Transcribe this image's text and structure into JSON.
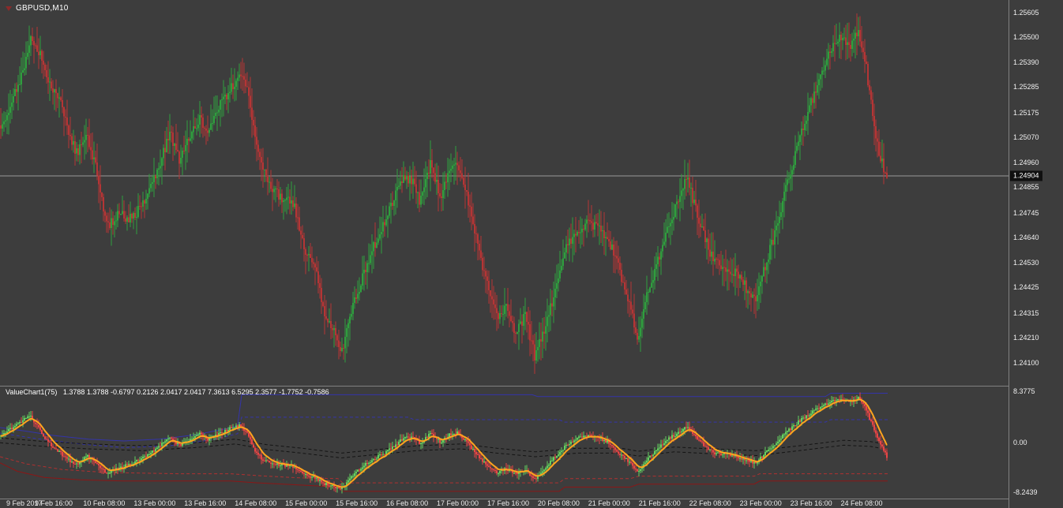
{
  "window": {
    "symbol_label": "GBPUSD,M10"
  },
  "colors": {
    "background": "#3d3d3d",
    "axis_text": "#f0f0f0",
    "separator": "#808080",
    "bull": "#2f9e3e",
    "bear": "#b53535",
    "osc_bull": "#63d05e",
    "osc_bear": "#e84545",
    "osc_ma": "#ffa41e",
    "osc_blue": "#3434aa",
    "osc_black": "#141414",
    "osc_dark_red": "#8c1616",
    "osc_red": "#b03030",
    "price_line": "#999999",
    "price_badge_bg": "#101010",
    "price_badge_text": "#ffffff",
    "symbol_triangle": "#8c2a2a"
  },
  "chart_data": [
    {
      "type": "candlestick",
      "symbol": "GBPUSD",
      "timeframe": "M10",
      "price_axis": {
        "max": 1.25605,
        "min": 1.241,
        "current_price": "1.24904",
        "labels": [
          "1.25605",
          "1.25500",
          "1.25390",
          "1.25285",
          "1.25175",
          "1.25070",
          "1.24960",
          "1.24855",
          "1.24745",
          "1.24640",
          "1.24530",
          "1.24425",
          "1.24315",
          "1.24210",
          "1.24100"
        ]
      },
      "time_axis": {
        "labels": [
          "9 Feb 2017",
          "9 Feb 16:00",
          "10 Feb 08:00",
          "13 Feb 00:00",
          "13 Feb 16:00",
          "14 Feb 08:00",
          "15 Feb 00:00",
          "15 Feb 16:00",
          "16 Feb 08:00",
          "17 Feb 00:00",
          "17 Feb 16:00",
          "20 Feb 08:00",
          "21 Feb 00:00",
          "21 Feb 16:00",
          "22 Feb 08:00",
          "23 Feb 00:00",
          "23 Feb 16:00",
          "24 Feb 08:00"
        ]
      },
      "price_path": [
        [
          0,
          1.2512
        ],
        [
          0.011,
          1.252
        ],
        [
          0.027,
          1.2538
        ],
        [
          0.034,
          1.255
        ],
        [
          0.043,
          1.2544
        ],
        [
          0.053,
          1.2532
        ],
        [
          0.067,
          1.2522
        ],
        [
          0.085,
          1.25
        ],
        [
          0.098,
          1.2507
        ],
        [
          0.109,
          1.2492
        ],
        [
          0.12,
          1.2468
        ],
        [
          0.133,
          1.2474
        ],
        [
          0.147,
          1.2472
        ],
        [
          0.16,
          1.2478
        ],
        [
          0.178,
          1.2494
        ],
        [
          0.191,
          1.2509
        ],
        [
          0.202,
          1.2497
        ],
        [
          0.214,
          1.2508
        ],
        [
          0.224,
          1.2515
        ],
        [
          0.233,
          1.251
        ],
        [
          0.245,
          1.2519
        ],
        [
          0.258,
          1.2527
        ],
        [
          0.27,
          1.2533
        ],
        [
          0.278,
          1.2528
        ],
        [
          0.286,
          1.2508
        ],
        [
          0.295,
          1.2494
        ],
        [
          0.307,
          1.2484
        ],
        [
          0.32,
          1.248
        ],
        [
          0.331,
          1.2478
        ],
        [
          0.343,
          1.2458
        ],
        [
          0.354,
          1.2452
        ],
        [
          0.365,
          1.2432
        ],
        [
          0.375,
          1.2425
        ],
        [
          0.384,
          1.2414
        ],
        [
          0.396,
          1.2432
        ],
        [
          0.407,
          1.2445
        ],
        [
          0.418,
          1.2458
        ],
        [
          0.431,
          1.2468
        ],
        [
          0.445,
          1.2482
        ],
        [
          0.455,
          1.249
        ],
        [
          0.467,
          1.2488
        ],
        [
          0.473,
          1.2479
        ],
        [
          0.485,
          1.2496
        ],
        [
          0.496,
          1.2481
        ],
        [
          0.507,
          1.2493
        ],
        [
          0.516,
          1.2494
        ],
        [
          0.527,
          1.248
        ],
        [
          0.538,
          1.2461
        ],
        [
          0.55,
          1.2442
        ],
        [
          0.56,
          1.243
        ],
        [
          0.571,
          1.2434
        ],
        [
          0.58,
          1.2424
        ],
        [
          0.592,
          1.243
        ],
        [
          0.603,
          1.2412
        ],
        [
          0.616,
          1.2428
        ],
        [
          0.627,
          1.2443
        ],
        [
          0.639,
          1.246
        ],
        [
          0.649,
          1.2466
        ],
        [
          0.663,
          1.247
        ],
        [
          0.674,
          1.2468
        ],
        [
          0.685,
          1.2464
        ],
        [
          0.698,
          1.245
        ],
        [
          0.709,
          1.2436
        ],
        [
          0.719,
          1.242
        ],
        [
          0.73,
          1.244
        ],
        [
          0.74,
          1.2452
        ],
        [
          0.752,
          1.2468
        ],
        [
          0.763,
          1.2478
        ],
        [
          0.774,
          1.249
        ],
        [
          0.785,
          1.2475
        ],
        [
          0.794,
          1.2464
        ],
        [
          0.805,
          1.2453
        ],
        [
          0.818,
          1.2451
        ],
        [
          0.832,
          1.2448
        ],
        [
          0.843,
          1.2441
        ],
        [
          0.852,
          1.2436
        ],
        [
          0.863,
          1.2452
        ],
        [
          0.874,
          1.2466
        ],
        [
          0.885,
          1.2484
        ],
        [
          0.899,
          1.2503
        ],
        [
          0.912,
          1.2519
        ],
        [
          0.925,
          1.2534
        ],
        [
          0.937,
          1.2544
        ],
        [
          0.948,
          1.2551
        ],
        [
          0.958,
          1.2545
        ],
        [
          0.968,
          1.2553
        ],
        [
          0.977,
          1.2536
        ],
        [
          0.984,
          1.2517
        ],
        [
          0.991,
          1.25
        ],
        [
          1,
          1.249
        ]
      ]
    },
    {
      "type": "oscillator-candles",
      "title": "ValueChart1(75)",
      "values_line": "1.3788 1.3788 -0.6797 0.2126 2.0417 2.0417 7.3613 6.5295 2.3577 -1.7752 -0.7586",
      "y_axis": {
        "max": 8.3775,
        "min": -8.2439,
        "labels": [
          "8.3775",
          "0.00",
          "-8.2439"
        ]
      },
      "value_path": [
        [
          0,
          1.0
        ],
        [
          0.011,
          2.2
        ],
        [
          0.027,
          3.8
        ],
        [
          0.034,
          4.2
        ],
        [
          0.043,
          2.2
        ],
        [
          0.053,
          0.0
        ],
        [
          0.067,
          -1.8
        ],
        [
          0.085,
          -3.8
        ],
        [
          0.098,
          -2.2
        ],
        [
          0.109,
          -3.6
        ],
        [
          0.12,
          -5.2
        ],
        [
          0.133,
          -4.2
        ],
        [
          0.147,
          -3.6
        ],
        [
          0.16,
          -2.6
        ],
        [
          0.178,
          -0.8
        ],
        [
          0.191,
          0.8
        ],
        [
          0.202,
          -0.6
        ],
        [
          0.214,
          0.6
        ],
        [
          0.224,
          1.4
        ],
        [
          0.233,
          0.4
        ],
        [
          0.245,
          1.2
        ],
        [
          0.258,
          2.2
        ],
        [
          0.27,
          2.8
        ],
        [
          0.278,
          1.6
        ],
        [
          0.286,
          -1.2
        ],
        [
          0.295,
          -2.8
        ],
        [
          0.307,
          -3.6
        ],
        [
          0.32,
          -3.8
        ],
        [
          0.331,
          -4.0
        ],
        [
          0.343,
          -5.4
        ],
        [
          0.354,
          -5.8
        ],
        [
          0.365,
          -6.8
        ],
        [
          0.375,
          -7.2
        ],
        [
          0.384,
          -7.8
        ],
        [
          0.396,
          -5.6
        ],
        [
          0.407,
          -4.2
        ],
        [
          0.418,
          -3.0
        ],
        [
          0.431,
          -2.0
        ],
        [
          0.445,
          -0.6
        ],
        [
          0.455,
          0.8
        ],
        [
          0.467,
          0.6
        ],
        [
          0.473,
          -0.4
        ],
        [
          0.485,
          1.6
        ],
        [
          0.496,
          0.0
        ],
        [
          0.507,
          1.4
        ],
        [
          0.516,
          1.6
        ],
        [
          0.527,
          -0.2
        ],
        [
          0.538,
          -2.2
        ],
        [
          0.55,
          -4.0
        ],
        [
          0.56,
          -5.0
        ],
        [
          0.571,
          -4.4
        ],
        [
          0.58,
          -5.2
        ],
        [
          0.592,
          -4.6
        ],
        [
          0.603,
          -6.2
        ],
        [
          0.616,
          -4.0
        ],
        [
          0.627,
          -2.2
        ],
        [
          0.639,
          -0.4
        ],
        [
          0.649,
          0.6
        ],
        [
          0.663,
          1.2
        ],
        [
          0.674,
          0.8
        ],
        [
          0.685,
          0.0
        ],
        [
          0.698,
          -1.8
        ],
        [
          0.709,
          -3.2
        ],
        [
          0.719,
          -5.0
        ],
        [
          0.73,
          -2.8
        ],
        [
          0.74,
          -1.4
        ],
        [
          0.752,
          0.4
        ],
        [
          0.763,
          1.4
        ],
        [
          0.774,
          2.6
        ],
        [
          0.785,
          0.8
        ],
        [
          0.794,
          -0.6
        ],
        [
          0.805,
          -1.8
        ],
        [
          0.818,
          -2.0
        ],
        [
          0.832,
          -2.4
        ],
        [
          0.843,
          -3.0
        ],
        [
          0.852,
          -3.4
        ],
        [
          0.863,
          -1.8
        ],
        [
          0.874,
          -0.4
        ],
        [
          0.885,
          1.4
        ],
        [
          0.899,
          3.2
        ],
        [
          0.912,
          4.6
        ],
        [
          0.925,
          5.8
        ],
        [
          0.937,
          6.6
        ],
        [
          0.948,
          7.2
        ],
        [
          0.958,
          6.6
        ],
        [
          0.968,
          7.3
        ],
        [
          0.977,
          5.2
        ],
        [
          0.984,
          2.6
        ],
        [
          0.991,
          0.2
        ],
        [
          1,
          -2.4
        ]
      ],
      "lines": {
        "blue_solid": [
          [
            0,
            2.4
          ],
          [
            0.03,
            1.8
          ],
          [
            0.06,
            1.1
          ],
          [
            0.1,
            0.5
          ],
          [
            0.14,
            0.2
          ],
          [
            0.18,
            0.5
          ],
          [
            0.22,
            1.2
          ],
          [
            0.262,
            2.4
          ],
          [
            0.268,
            2.8
          ],
          [
            0.272,
            7.8
          ],
          [
            0.6,
            7.8
          ],
          [
            0.606,
            7.5
          ],
          [
            0.93,
            7.5
          ],
          [
            0.936,
            8.05
          ],
          [
            1,
            8.05
          ]
        ],
        "blue_dashed": [
          [
            0,
            1.5
          ],
          [
            0.04,
            0.6
          ],
          [
            0.09,
            -0.3
          ],
          [
            0.14,
            -0.9
          ],
          [
            0.19,
            -0.6
          ],
          [
            0.24,
            0.4
          ],
          [
            0.268,
            1.4
          ],
          [
            0.272,
            4.1
          ],
          [
            0.46,
            4.1
          ],
          [
            0.466,
            3.7
          ],
          [
            0.63,
            3.7
          ],
          [
            0.636,
            3.3
          ],
          [
            0.82,
            3.3
          ],
          [
            0.93,
            3.3
          ],
          [
            0.936,
            3.7
          ],
          [
            1,
            3.7
          ]
        ],
        "black_dashed_1": [
          [
            0,
            0.7
          ],
          [
            0.05,
            0.1
          ],
          [
            0.1,
            -0.3
          ],
          [
            0.16,
            -0.6
          ],
          [
            0.22,
            -0.1
          ],
          [
            0.265,
            0.5
          ],
          [
            0.3,
            -0.4
          ],
          [
            0.34,
            -1.0
          ],
          [
            0.384,
            -1.8
          ],
          [
            0.42,
            -1.3
          ],
          [
            0.47,
            -0.6
          ],
          [
            0.52,
            -0.3
          ],
          [
            0.56,
            -1.0
          ],
          [
            0.603,
            -1.6
          ],
          [
            0.65,
            -1.0
          ],
          [
            0.7,
            -1.0
          ],
          [
            0.719,
            -1.5
          ],
          [
            0.76,
            -0.8
          ],
          [
            0.8,
            -1.1
          ],
          [
            0.852,
            -1.4
          ],
          [
            0.9,
            -0.6
          ],
          [
            0.95,
            0.3
          ],
          [
            0.98,
            0.1
          ],
          [
            1,
            -0.4
          ]
        ],
        "black_dashed_2": [
          [
            0,
            -0.1
          ],
          [
            0.05,
            -0.7
          ],
          [
            0.1,
            -1.1
          ],
          [
            0.16,
            -1.4
          ],
          [
            0.22,
            -0.9
          ],
          [
            0.265,
            -0.3
          ],
          [
            0.3,
            -1.2
          ],
          [
            0.34,
            -1.8
          ],
          [
            0.384,
            -2.6
          ],
          [
            0.42,
            -2.1
          ],
          [
            0.47,
            -1.4
          ],
          [
            0.52,
            -1.1
          ],
          [
            0.56,
            -1.8
          ],
          [
            0.603,
            -2.4
          ],
          [
            0.65,
            -1.8
          ],
          [
            0.7,
            -1.8
          ],
          [
            0.719,
            -2.3
          ],
          [
            0.76,
            -1.6
          ],
          [
            0.8,
            -1.9
          ],
          [
            0.852,
            -2.2
          ],
          [
            0.9,
            -1.4
          ],
          [
            0.95,
            -0.5
          ],
          [
            0.98,
            -0.7
          ],
          [
            1,
            -1.2
          ]
        ],
        "red_solid": [
          [
            0,
            -3.4
          ],
          [
            0.02,
            -4.8
          ],
          [
            0.05,
            -5.8
          ],
          [
            0.09,
            -6.2
          ],
          [
            0.14,
            -6.4
          ],
          [
            0.26,
            -6.4
          ],
          [
            0.29,
            -6.7
          ],
          [
            0.33,
            -7.0
          ],
          [
            0.37,
            -7.3
          ],
          [
            0.381,
            -7.4
          ],
          [
            0.386,
            -8.1
          ],
          [
            0.63,
            -8.1
          ],
          [
            0.636,
            -7.4
          ],
          [
            0.71,
            -7.4
          ],
          [
            0.72,
            -6.9
          ],
          [
            0.85,
            -6.9
          ],
          [
            0.856,
            -6.4
          ],
          [
            1,
            -6.4
          ]
        ],
        "red_dashed": [
          [
            0,
            -2.4
          ],
          [
            0.03,
            -3.6
          ],
          [
            0.07,
            -4.5
          ],
          [
            0.12,
            -5.0
          ],
          [
            0.2,
            -5.2
          ],
          [
            0.26,
            -5.2
          ],
          [
            0.3,
            -5.6
          ],
          [
            0.34,
            -5.9
          ],
          [
            0.381,
            -6.0
          ],
          [
            0.386,
            -6.7
          ],
          [
            0.63,
            -6.7
          ],
          [
            0.636,
            -6.0
          ],
          [
            0.71,
            -6.0
          ],
          [
            0.72,
            -5.6
          ],
          [
            0.85,
            -5.6
          ],
          [
            0.856,
            -5.2
          ],
          [
            1,
            -5.2
          ]
        ]
      }
    }
  ]
}
